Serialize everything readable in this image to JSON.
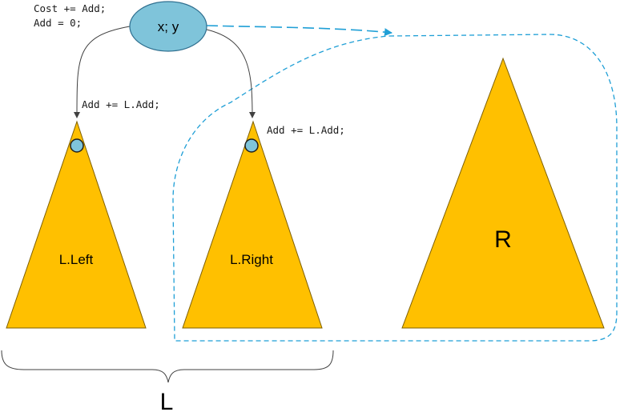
{
  "root_node": {
    "label": "x; y"
  },
  "root_code": {
    "line1": "Cost += Add;",
    "line2": "Add = 0;"
  },
  "left_edge_code": "Add += L.Add;",
  "right_edge_code": "Add += L.Add;",
  "subtrees": {
    "left": {
      "label": "L.Left"
    },
    "right": {
      "label": "L.Right"
    },
    "big": {
      "label": "R"
    }
  },
  "brace_label": "L",
  "colors": {
    "triangle_fill": "#FFC000",
    "triangle_stroke": "#7F6000",
    "node_fill": "#7FC4DA",
    "node_stroke": "#2F6F8F",
    "dashed_stroke": "#1F9FD6",
    "edge_stroke": "#404040"
  }
}
